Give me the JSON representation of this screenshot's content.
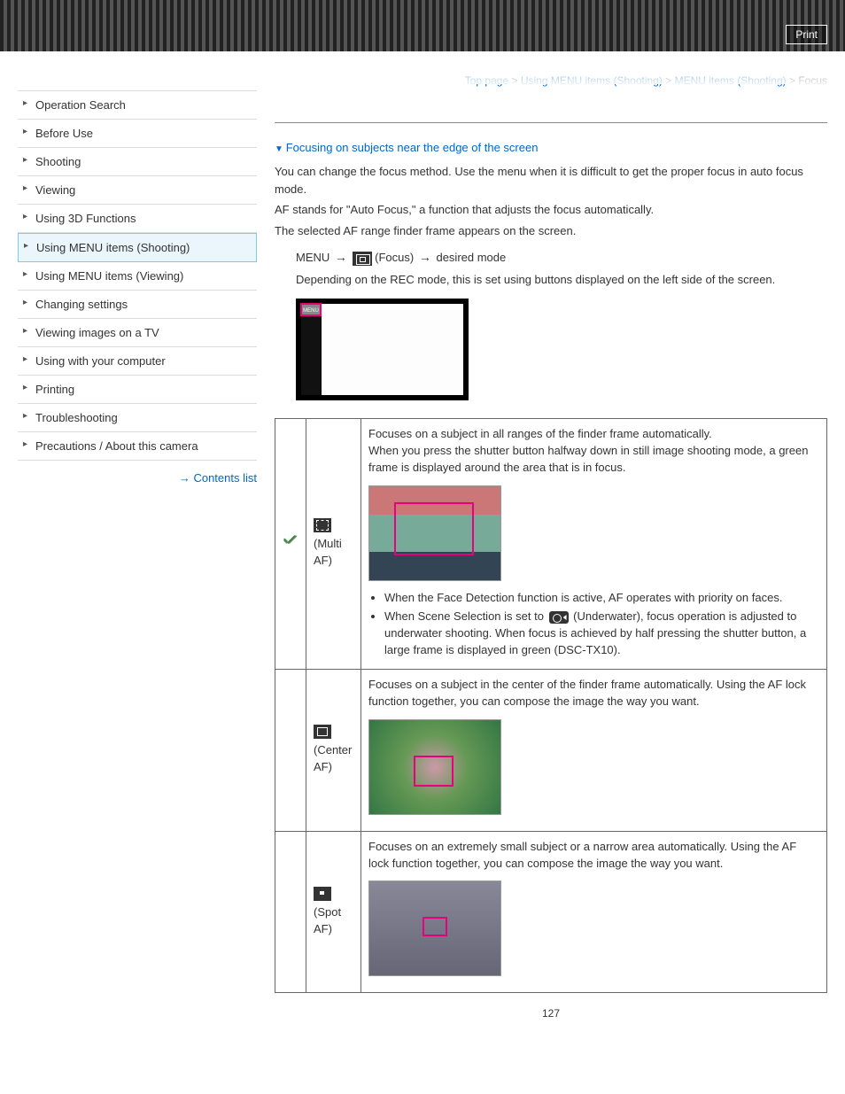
{
  "header": {
    "print_label": "Print"
  },
  "breadcrumb": {
    "items": [
      "Top page",
      "Using MENU items (Shooting)",
      "MENU items (Shooting)"
    ],
    "current": "Focus",
    "separator": ">"
  },
  "sidebar": {
    "items": [
      "Operation Search",
      "Before Use",
      "Shooting",
      "Viewing",
      "Using 3D Functions",
      "Using MENU items (Shooting)",
      "Using MENU items (Viewing)",
      "Changing settings",
      "Viewing images on a TV",
      "Using with your computer",
      "Printing",
      "Troubleshooting",
      "Precautions / About this camera"
    ],
    "active_index": 5,
    "contents_link": "Contents list"
  },
  "content": {
    "anchor": "Focusing on subjects near the edge of the screen",
    "intro1": "You can change the focus method. Use the menu when it is difficult to get the proper focus in auto focus mode.",
    "intro2": "AF stands for \"Auto Focus,\" a function that adjusts the focus automatically.",
    "intro3": "The selected AF range finder frame appears on the screen.",
    "step_menu": "MENU",
    "step_focus": "(Focus)",
    "step_desired": "desired mode",
    "step_note": "Depending on the REC mode, this is set using buttons displayed on the left side of the screen.",
    "illus_menu_label": "MENU"
  },
  "modes": {
    "rows": [
      {
        "checked": true,
        "name": "(Multi AF)",
        "icon": "multi",
        "desc_lead": "Focuses on a subject in all ranges of the finder frame automatically.",
        "desc_extra": "When you press the shutter button halfway down in still image shooting mode, a green frame is displayed around the area that is in focus.",
        "image": "boat",
        "bullets": [
          "When the Face Detection function is active, AF operates with priority on faces.",
          "When Scene Selection is set to __ICON__ (Underwater), focus operation is adjusted to underwater shooting. When focus is achieved by half pressing the shutter button, a large frame is displayed in green (DSC-TX10)."
        ]
      },
      {
        "checked": false,
        "name": "(Center AF)",
        "icon": "center",
        "desc_lead": "Focuses on a subject in the center of the finder frame automatically. Using the AF lock function together, you can compose the image the way you want.",
        "desc_extra": "",
        "image": "cat",
        "bullets": []
      },
      {
        "checked": false,
        "name": "(Spot AF)",
        "icon": "spot",
        "desc_lead": "Focuses on an extremely small subject or a narrow area automatically. Using the AF lock function together, you can compose the image the way you want.",
        "desc_extra": "",
        "image": "spot",
        "bullets": []
      }
    ]
  },
  "page_number": "127",
  "colors": {
    "link": "#0066cc",
    "accent_border": "#7accee",
    "accent_bg": "#eaf6fb",
    "focus_frame": "#e6007e",
    "check": "#3a8a3a"
  }
}
